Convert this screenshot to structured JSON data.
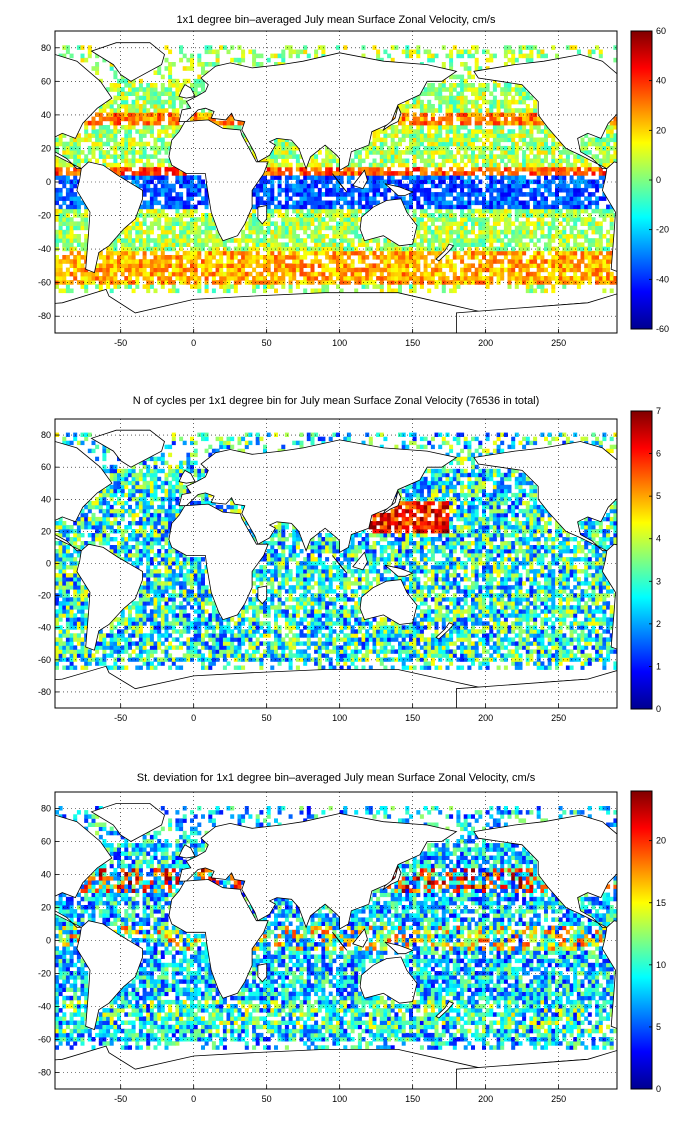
{
  "chart_data": [
    {
      "type": "heatmap",
      "title": "1x1 degree bin–averaged July mean Surface Zonal Velocity, cm/s",
      "xlabel": "",
      "ylabel": "",
      "xlim": [
        -95,
        290
      ],
      "ylim": [
        -90,
        90
      ],
      "xticks": [
        "-50",
        "0",
        "50",
        "100",
        "150",
        "200",
        "250"
      ],
      "yticks": [
        "80",
        "60",
        "40",
        "20",
        "0",
        "-20",
        "-40",
        "-60",
        "-80"
      ],
      "colorbar": {
        "min": -60,
        "max": 60,
        "ticks": [
          "60",
          "40",
          "20",
          "0",
          "-20",
          "-40",
          "-60"
        ]
      },
      "grid": true,
      "colormap": "jet",
      "features": [
        {
          "name": "equatorial westward band",
          "lat_range": [
            -15,
            5
          ],
          "value": -35
        },
        {
          "name": "north equatorial countercurrent",
          "lat_range": [
            4,
            9
          ],
          "value": 35
        },
        {
          "name": "antarctic circumpolar current",
          "lat_range": [
            -60,
            -40
          ],
          "value": 25
        },
        {
          "name": "kuroshio / gulf stream",
          "lat_range": [
            33,
            42
          ],
          "value": 30
        }
      ]
    },
    {
      "type": "heatmap",
      "title": "N of cycles per 1x1 degree bin for July mean Surface Zonal Velocity (76536 in total)",
      "xlabel": "",
      "ylabel": "",
      "xlim": [
        -95,
        290
      ],
      "ylim": [
        -90,
        90
      ],
      "xticks": [
        "-50",
        "0",
        "50",
        "100",
        "150",
        "200",
        "250"
      ],
      "yticks": [
        "80",
        "60",
        "40",
        "20",
        "0",
        "-20",
        "-40",
        "-60",
        "-80"
      ],
      "colorbar": {
        "min": 0,
        "max": 7,
        "ticks": [
          "7",
          "6",
          "5",
          "4",
          "3",
          "2",
          "1",
          "0"
        ]
      },
      "grid": true,
      "colormap": "jet",
      "total": 76536,
      "features": [
        {
          "name": "northwest pacific high density",
          "lat_range": [
            20,
            40
          ],
          "value": 6
        },
        {
          "name": "typical coverage",
          "lat_range": [
            -60,
            60
          ],
          "value": 2
        }
      ]
    },
    {
      "type": "heatmap",
      "title": "St. deviation for 1x1 degree bin–averaged July mean Surface Zonal Velocity, cm/s",
      "xlabel": "",
      "ylabel": "",
      "xlim": [
        -95,
        290
      ],
      "ylim": [
        -90,
        90
      ],
      "xticks": [
        "-50",
        "0",
        "50",
        "100",
        "150",
        "200",
        "250"
      ],
      "yticks": [
        "80",
        "60",
        "40",
        "20",
        "0",
        "-20",
        "-40",
        "-60",
        "-80"
      ],
      "colorbar": {
        "min": 0,
        "max": 24,
        "ticks": [
          "20",
          "15",
          "10",
          "5",
          "0"
        ]
      },
      "grid": true,
      "colormap": "jet",
      "features": [
        {
          "name": "western boundary currents",
          "lat_range": [
            30,
            45
          ],
          "value": 20
        },
        {
          "name": "equatorial band",
          "lat_range": [
            -5,
            8
          ],
          "value": 16
        },
        {
          "name": "southern ocean",
          "lat_range": [
            -55,
            -35
          ],
          "value": 12
        }
      ]
    }
  ]
}
